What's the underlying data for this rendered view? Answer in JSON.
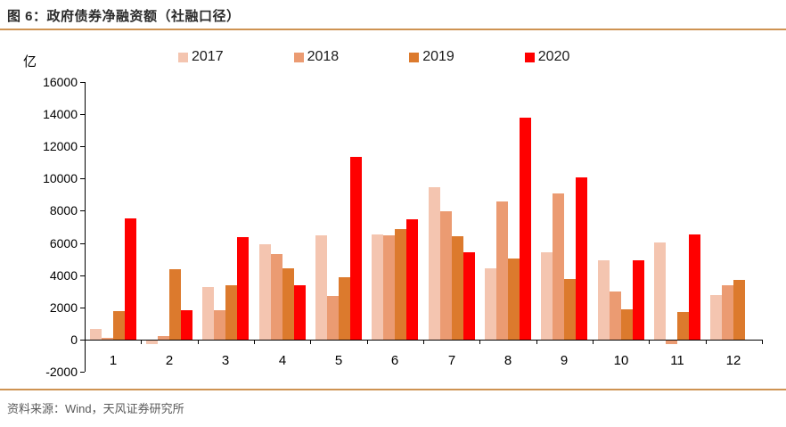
{
  "header": {
    "title": "图 6：政府债券净融资额（社融口径）"
  },
  "footer": {
    "source": "资料来源：Wind，天风证券研究所"
  },
  "colors": {
    "accent_rule": "#ce9352",
    "axis": "#000000",
    "footer_text": "#595959",
    "series_2017": "#f4c5b0",
    "series_2018": "#eb9b72",
    "series_2019": "#dc7a2d",
    "series_2020": "#ff0000"
  },
  "chart_data": {
    "type": "bar",
    "title": "图 6：政府债券净融资额（社融口径）",
    "unit_label": "亿",
    "xlabel": "",
    "ylabel": "亿",
    "ylim": [
      -2000,
      16000
    ],
    "ytick_step": 2000,
    "yticks": [
      16000,
      14000,
      12000,
      10000,
      8000,
      6000,
      4000,
      2000,
      0,
      -2000
    ],
    "grid": false,
    "legend_position": "top",
    "categories": [
      "1",
      "2",
      "3",
      "4",
      "5",
      "6",
      "7",
      "8",
      "9",
      "10",
      "11",
      "12"
    ],
    "series": [
      {
        "name": "2017",
        "color": "#f4c5b0",
        "values": [
          650,
          -250,
          3250,
          5950,
          6500,
          6550,
          9450,
          4400,
          5450,
          4950,
          6050,
          2750
        ]
      },
      {
        "name": "2018",
        "color": "#eb9b72",
        "values": [
          100,
          200,
          1850,
          5300,
          2700,
          6500,
          7950,
          8600,
          9100,
          3000,
          -250,
          3400
        ]
      },
      {
        "name": "2019",
        "color": "#dc7a2d",
        "values": [
          1750,
          4350,
          3400,
          4400,
          3850,
          6850,
          6400,
          5050,
          3750,
          1900,
          1700,
          3700
        ]
      },
      {
        "name": "2020",
        "color": "#ff0000",
        "values": [
          7550,
          1850,
          6350,
          3350,
          11350,
          7450,
          5450,
          13800,
          10100,
          4950,
          6550,
          null
        ]
      }
    ]
  }
}
